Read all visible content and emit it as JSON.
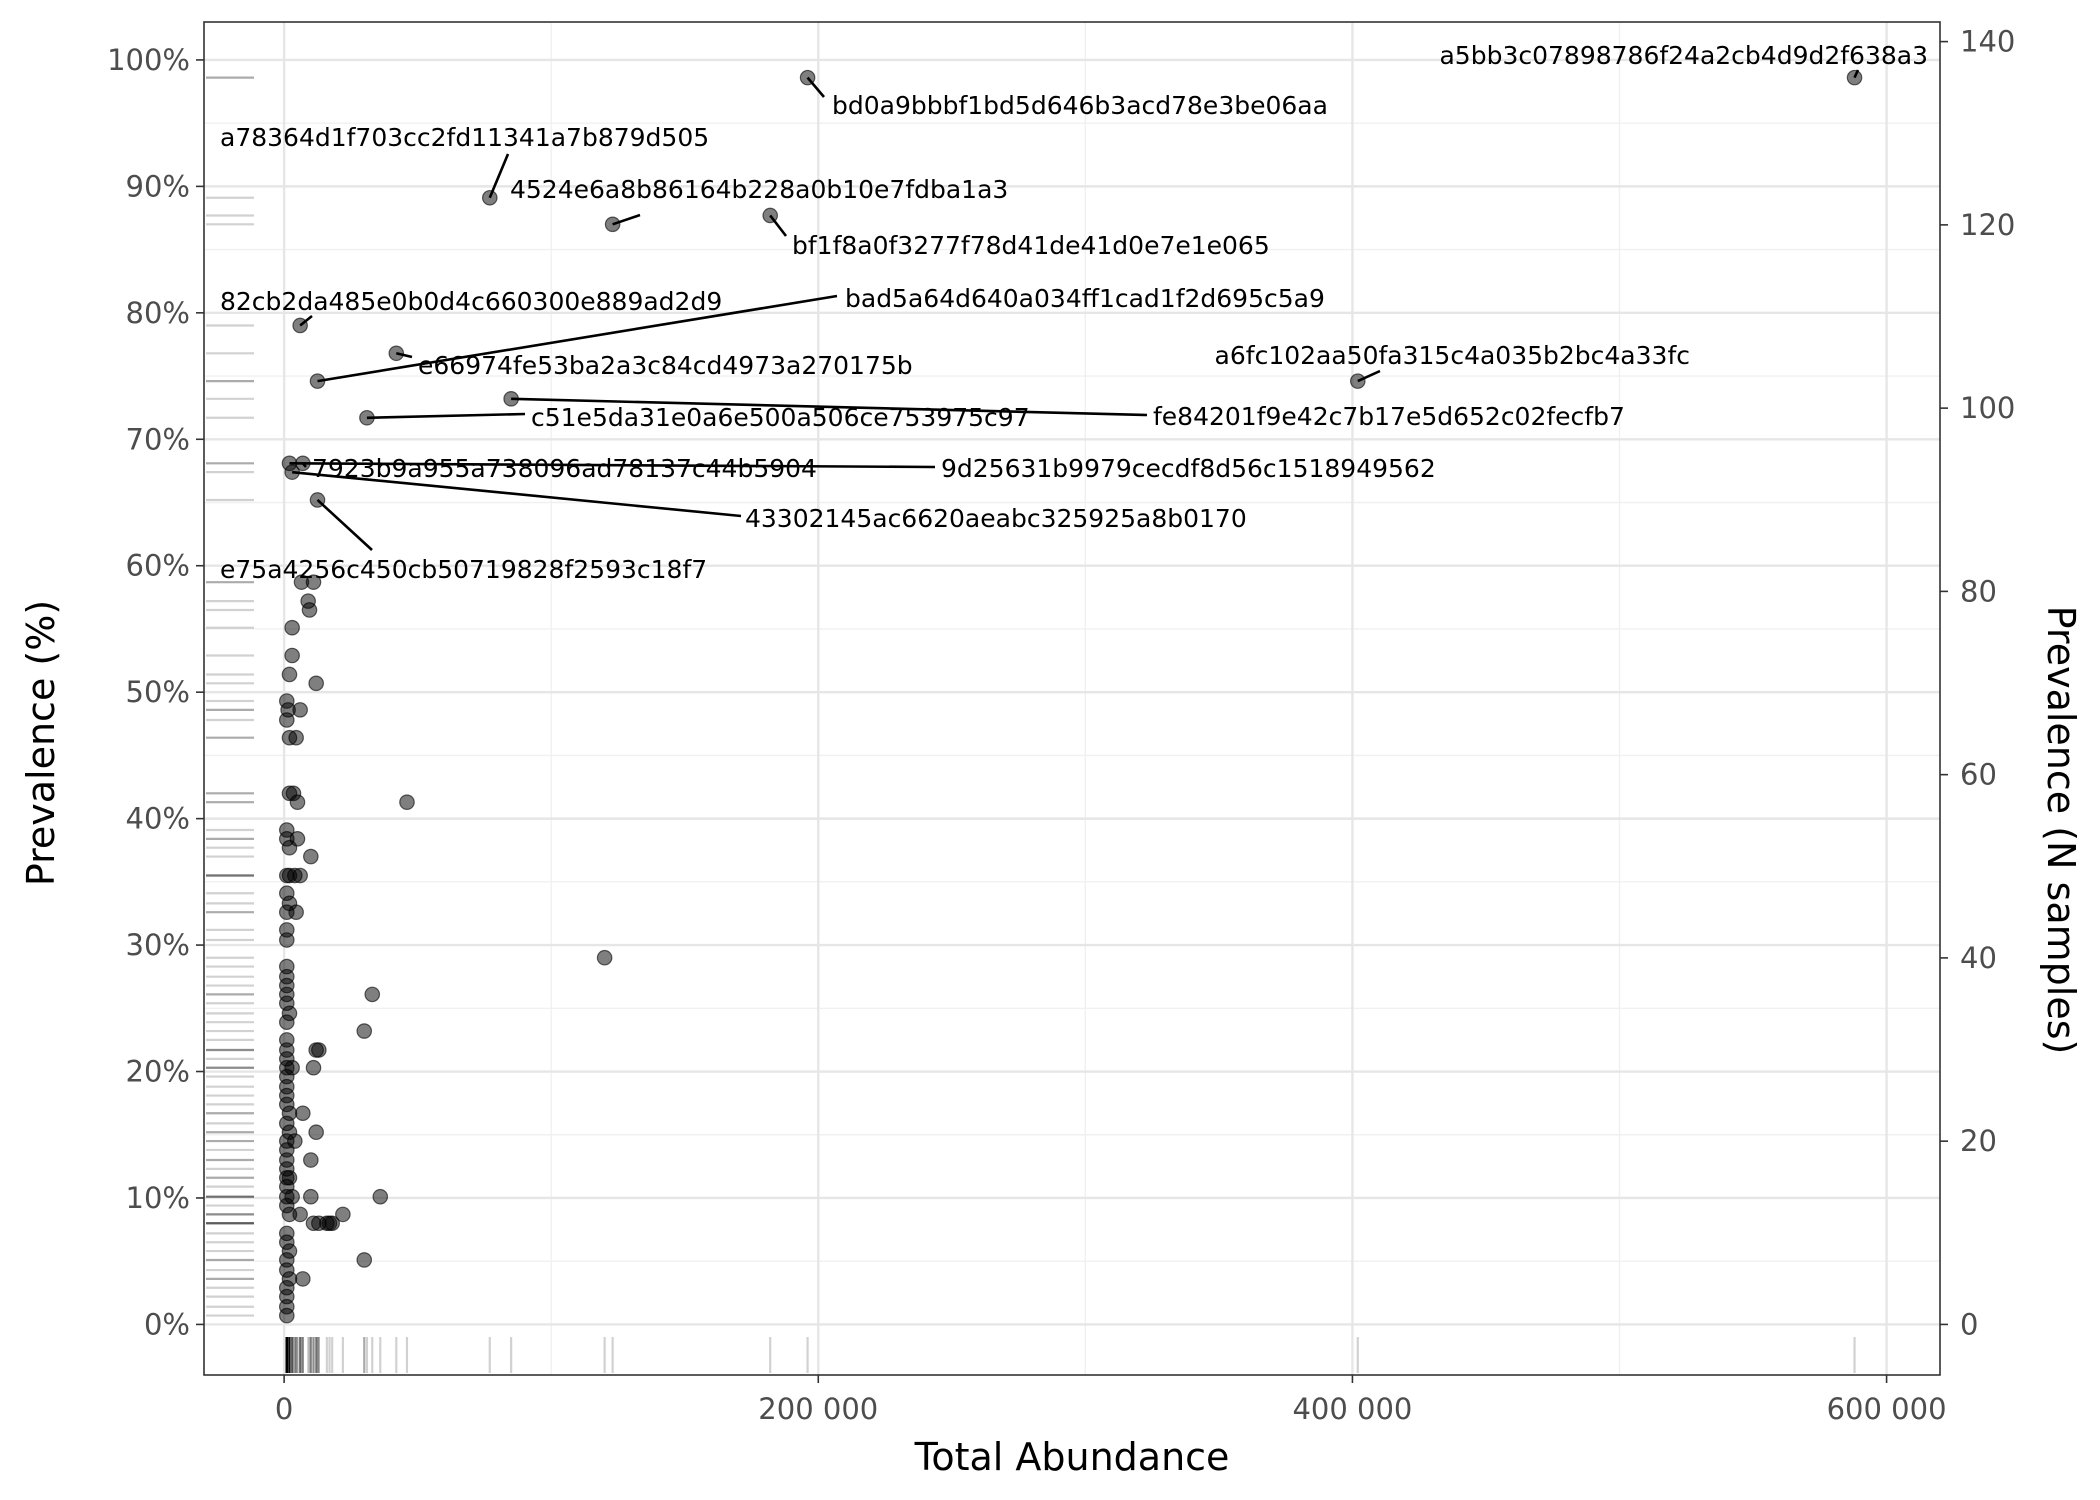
{
  "chart_data": {
    "type": "scatter",
    "title": "",
    "xlabel": "Total Abundance",
    "ylabel": "Prevalence (%)",
    "ylabel_right": "Prevalence (N samples)",
    "xlim": [
      -30000,
      620000
    ],
    "ylim": [
      -4,
      103
    ],
    "x_ticks": [
      0,
      200000,
      400000,
      600000
    ],
    "x_tick_labels": [
      "0",
      "200 000",
      "400 000",
      "600 000"
    ],
    "y_ticks": [
      0,
      10,
      20,
      30,
      40,
      50,
      60,
      70,
      80,
      90,
      100
    ],
    "y_tick_labels": [
      "0%",
      "10%",
      "20%",
      "30%",
      "40%",
      "50%",
      "60%",
      "70%",
      "80%",
      "90%",
      "100%"
    ],
    "y2_ticks": [
      0,
      20,
      40,
      60,
      80,
      100,
      120,
      140
    ],
    "y2_tick_labels": [
      "0",
      "20",
      "40",
      "60",
      "80",
      "100",
      "120",
      "140"
    ],
    "samples_total": 138,
    "grid": true,
    "point_color": "#000000",
    "point_alpha": 0.5,
    "rug": true,
    "labeled_points": [
      {
        "label": "a5bb3c07898786f24a2cb4d9d2f638a3",
        "x": 588000,
        "y": 98.6
      },
      {
        "label": "bd0a9bbbf1bd5d646b3acd78e3be06aa",
        "x": 196000,
        "y": 98.6
      },
      {
        "label": "a78364d1f703cc2fd11341a7b879d505",
        "x": 77000,
        "y": 89.1
      },
      {
        "label": "4524e6a8b86164b228a0b10e7fdba1a3",
        "x": 123000,
        "y": 87.0
      },
      {
        "label": "bf1f8a0f3277f78d41de41d0e7e1e065",
        "x": 182000,
        "y": 87.7
      },
      {
        "label": "82cb2da485e0b0d4c660300e889ad2d9",
        "x": 6000,
        "y": 79.0
      },
      {
        "label": "bad5a64d640a034ff1cad1f2d695c5a9",
        "x": 12500,
        "y": 74.6
      },
      {
        "label": "e66974fe53ba2a3c84cd4973a270175b",
        "x": 42000,
        "y": 76.8
      },
      {
        "label": "a6fc102aa50fa315c4a035b2bc4a33fc",
        "x": 402000,
        "y": 74.6
      },
      {
        "label": "c51e5da31e0a6e500a506ce753975c97",
        "x": 31000,
        "y": 71.7
      },
      {
        "label": "fe84201f9e42c7b17e5d652c02fecfb7",
        "x": 85000,
        "y": 73.2
      },
      {
        "label": "7923b9a955a738096ad78137c44b5904",
        "x": 7000,
        "y": 68.1
      },
      {
        "label": "9d25631b9979cecdf8d56c1518949562",
        "x": 2000,
        "y": 68.1
      },
      {
        "label": "43302145ac6620aeabc325925a8b0170",
        "x": 3000,
        "y": 67.4
      },
      {
        "label": "e75a4256c450cb50719828f2593c18f7",
        "x": 12500,
        "y": 65.2
      }
    ],
    "other_points": [
      [
        6500,
        58.7
      ],
      [
        11000,
        58.7
      ],
      [
        9000,
        57.2
      ],
      [
        9500,
        56.5
      ],
      [
        3000,
        55.1
      ],
      [
        3000,
        52.9
      ],
      [
        2000,
        51.4
      ],
      [
        12000,
        50.7
      ],
      [
        1000,
        49.3
      ],
      [
        6000,
        48.6
      ],
      [
        1500,
        48.6
      ],
      [
        1000,
        47.8
      ],
      [
        2000,
        46.4
      ],
      [
        4500,
        46.4
      ],
      [
        46000,
        41.3
      ],
      [
        2000,
        42.0
      ],
      [
        3500,
        42.0
      ],
      [
        5000,
        41.3
      ],
      [
        1000,
        39.1
      ],
      [
        1000,
        38.4
      ],
      [
        5000,
        38.4
      ],
      [
        2000,
        37.7
      ],
      [
        10000,
        37.0
      ],
      [
        1000,
        35.5
      ],
      [
        2000,
        35.5
      ],
      [
        4000,
        35.5
      ],
      [
        6000,
        35.5
      ],
      [
        1000,
        34.1
      ],
      [
        2000,
        33.3
      ],
      [
        1000,
        32.6
      ],
      [
        4500,
        32.6
      ],
      [
        1000,
        31.2
      ],
      [
        1000,
        30.4
      ],
      [
        120000,
        29.0
      ],
      [
        1000,
        28.3
      ],
      [
        1000,
        27.5
      ],
      [
        1000,
        26.8
      ],
      [
        1000,
        26.1
      ],
      [
        33000,
        26.1
      ],
      [
        1000,
        25.4
      ],
      [
        2000,
        24.6
      ],
      [
        1000,
        23.9
      ],
      [
        30000,
        23.2
      ],
      [
        1000,
        22.5
      ],
      [
        1000,
        21.7
      ],
      [
        12000,
        21.7
      ],
      [
        13000,
        21.7
      ],
      [
        1000,
        21.0
      ],
      [
        1000,
        20.3
      ],
      [
        3000,
        20.3
      ],
      [
        11000,
        20.3
      ],
      [
        1000,
        19.6
      ],
      [
        1000,
        18.8
      ],
      [
        1000,
        18.1
      ],
      [
        1000,
        17.4
      ],
      [
        2000,
        16.7
      ],
      [
        7000,
        16.7
      ],
      [
        1000,
        15.9
      ],
      [
        2000,
        15.2
      ],
      [
        12000,
        15.2
      ],
      [
        1000,
        14.5
      ],
      [
        4000,
        14.5
      ],
      [
        1000,
        13.8
      ],
      [
        1000,
        13.0
      ],
      [
        10000,
        13.0
      ],
      [
        1000,
        12.3
      ],
      [
        1000,
        11.6
      ],
      [
        2000,
        11.6
      ],
      [
        1000,
        10.9
      ],
      [
        1000,
        10.1
      ],
      [
        36000,
        10.1
      ],
      [
        3000,
        10.1
      ],
      [
        10000,
        10.1
      ],
      [
        1000,
        9.4
      ],
      [
        2000,
        8.7
      ],
      [
        22000,
        8.7
      ],
      [
        6000,
        8.7
      ],
      [
        11000,
        8.0
      ],
      [
        13000,
        8.0
      ],
      [
        16000,
        8.0
      ],
      [
        17000,
        8.0
      ],
      [
        18000,
        8.0
      ],
      [
        1000,
        7.2
      ],
      [
        1000,
        6.5
      ],
      [
        2000,
        5.8
      ],
      [
        30000,
        5.1
      ],
      [
        1000,
        5.1
      ],
      [
        1000,
        4.3
      ],
      [
        7000,
        3.6
      ],
      [
        2000,
        3.6
      ],
      [
        1000,
        2.9
      ],
      [
        1000,
        2.2
      ],
      [
        1000,
        1.4
      ],
      [
        1000,
        0.7
      ]
    ]
  }
}
